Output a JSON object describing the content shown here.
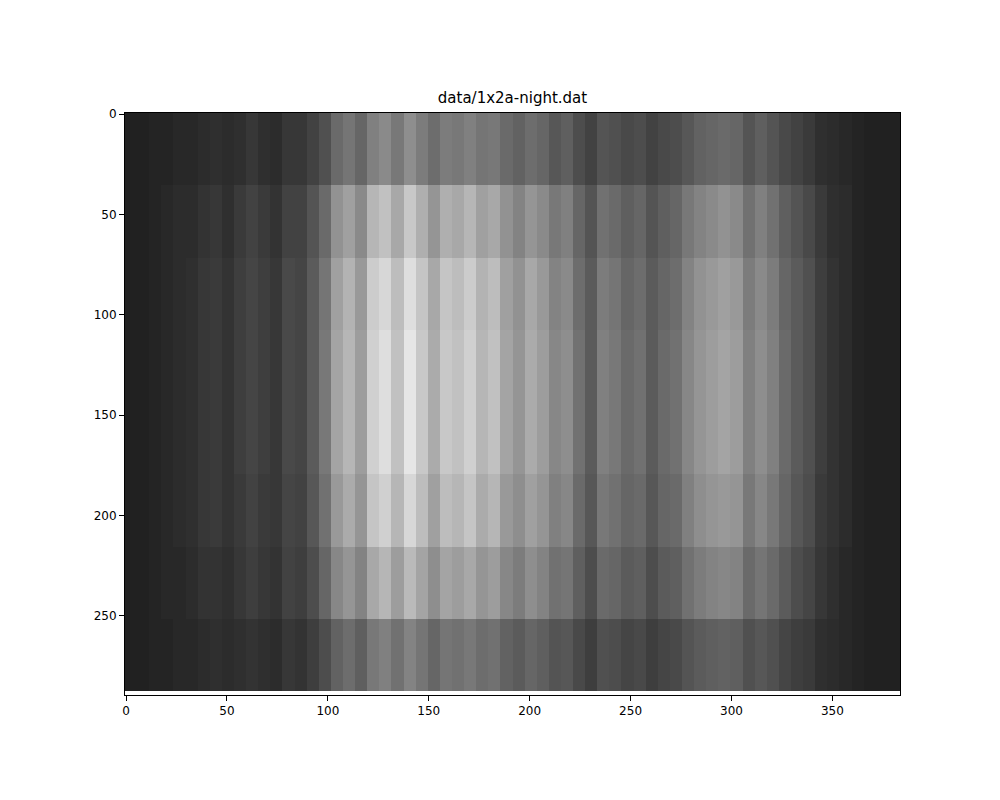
{
  "chart_data": {
    "type": "heatmap",
    "title": "data/1x2a-night.dat",
    "x": [
      2.5,
      8.5,
      14.5,
      20.5,
      26.5,
      32.5,
      38.5,
      44.5,
      50.5,
      56.5,
      62.5,
      68.5,
      74.5,
      80.5,
      86.5,
      92.5,
      98.5,
      104.5,
      110.5,
      116.5,
      122.5,
      128.5,
      134.5,
      140.5,
      146.5,
      152.5,
      158.5,
      164.5,
      170.5,
      176.5,
      182.5,
      188.5,
      194.5,
      200.5,
      206.5,
      212.5,
      218.5,
      224.5,
      230.5,
      236.5,
      242.5,
      248.5,
      254.5,
      260.5,
      266.5,
      272.5,
      278.5,
      284.5,
      290.5,
      296.5,
      302.5,
      308.5,
      314.5,
      320.5,
      326.5,
      332.5,
      338.5,
      344.5,
      350.5,
      356.5,
      362.5,
      368.5,
      374.5,
      380.5
    ],
    "y": [
      17.5,
      53.5,
      89.5,
      125.5,
      161.5,
      197.5,
      233.5,
      269.5
    ],
    "cells": [
      [
        14,
        14,
        15,
        15,
        16,
        16,
        17,
        18,
        17,
        18,
        20,
        18,
        17,
        20,
        20,
        23,
        27,
        34,
        37,
        33,
        40,
        43,
        38,
        44,
        39,
        35,
        39,
        38,
        40,
        37,
        38,
        34,
        32,
        35,
        33,
        29,
        31,
        26,
        23,
        28,
        27,
        25,
        26,
        23,
        25,
        26,
        29,
        32,
        33,
        34,
        33,
        28,
        31,
        28,
        25,
        23,
        21,
        18,
        17,
        16,
        15,
        14,
        14,
        14
      ],
      [
        14,
        14,
        15,
        16,
        17,
        17,
        19,
        20,
        18,
        21,
        23,
        21,
        19,
        23,
        23,
        28,
        34,
        45,
        49,
        43,
        55,
        58,
        51,
        60,
        53,
        46,
        53,
        51,
        55,
        49,
        51,
        45,
        41,
        46,
        43,
        38,
        40,
        33,
        28,
        36,
        34,
        31,
        33,
        28,
        31,
        33,
        38,
        41,
        43,
        45,
        43,
        36,
        40,
        36,
        31,
        28,
        25,
        21,
        18,
        17,
        15,
        14,
        14,
        14
      ],
      [
        14,
        14,
        15,
        16,
        17,
        18,
        20,
        21,
        19,
        22,
        24,
        22,
        20,
        25,
        24,
        30,
        37,
        49,
        54,
        47,
        61,
        64,
        57,
        66,
        59,
        51,
        59,
        57,
        61,
        54,
        57,
        49,
        45,
        51,
        47,
        41,
        43,
        35,
        30,
        39,
        37,
        33,
        35,
        30,
        33,
        35,
        41,
        45,
        47,
        49,
        47,
        39,
        43,
        39,
        33,
        30,
        27,
        22,
        19,
        17,
        15,
        14,
        14,
        14
      ],
      [
        14,
        14,
        15,
        16,
        17,
        18,
        20,
        21,
        19,
        22,
        24,
        22,
        20,
        25,
        24,
        30,
        38,
        50,
        55,
        48,
        62,
        66,
        58,
        68,
        60,
        52,
        60,
        58,
        62,
        55,
        58,
        50,
        46,
        52,
        48,
        42,
        44,
        36,
        30,
        40,
        38,
        34,
        36,
        30,
        34,
        36,
        42,
        46,
        48,
        50,
        48,
        40,
        44,
        40,
        34,
        30,
        27,
        22,
        19,
        17,
        15,
        14,
        14,
        14
      ],
      [
        14,
        14,
        15,
        16,
        17,
        18,
        20,
        21,
        19,
        22,
        24,
        22,
        20,
        25,
        24,
        30,
        38,
        50,
        55,
        48,
        62,
        66,
        58,
        68,
        60,
        52,
        60,
        58,
        62,
        55,
        58,
        50,
        46,
        52,
        48,
        42,
        44,
        36,
        30,
        40,
        38,
        34,
        36,
        30,
        34,
        36,
        42,
        46,
        48,
        50,
        48,
        40,
        44,
        40,
        34,
        30,
        27,
        22,
        19,
        17,
        15,
        14,
        14,
        14
      ],
      [
        14,
        14,
        15,
        16,
        17,
        18,
        20,
        21,
        19,
        21,
        23,
        21,
        20,
        24,
        23,
        29,
        36,
        47,
        52,
        46,
        59,
        62,
        55,
        64,
        57,
        49,
        57,
        55,
        59,
        52,
        55,
        47,
        44,
        49,
        46,
        40,
        42,
        34,
        29,
        38,
        36,
        33,
        34,
        29,
        33,
        34,
        40,
        44,
        46,
        47,
        46,
        38,
        42,
        38,
        33,
        29,
        26,
        21,
        19,
        17,
        15,
        14,
        14,
        14
      ],
      [
        14,
        14,
        15,
        16,
        16,
        17,
        19,
        19,
        18,
        20,
        22,
        20,
        19,
        23,
        22,
        26,
        33,
        42,
        46,
        41,
        51,
        55,
        48,
        56,
        50,
        44,
        50,
        48,
        51,
        46,
        48,
        42,
        39,
        44,
        41,
        36,
        37,
        31,
        26,
        34,
        33,
        30,
        31,
        26,
        30,
        31,
        36,
        39,
        41,
        42,
        41,
        34,
        37,
        34,
        30,
        26,
        24,
        20,
        18,
        16,
        15,
        14,
        14,
        14
      ],
      [
        14,
        14,
        15,
        15,
        16,
        16,
        17,
        18,
        17,
        18,
        19,
        18,
        17,
        20,
        19,
        22,
        26,
        32,
        35,
        31,
        38,
        40,
        36,
        41,
        37,
        33,
        37,
        36,
        38,
        35,
        36,
        32,
        30,
        33,
        31,
        28,
        29,
        25,
        22,
        27,
        26,
        24,
        25,
        22,
        24,
        25,
        28,
        30,
        31,
        32,
        31,
        27,
        29,
        27,
        24,
        22,
        21,
        18,
        17,
        16,
        15,
        14,
        14,
        14
      ]
    ],
    "zlim": [
      5,
      75
    ],
    "xlim": [
      -0.5,
      383.5
    ],
    "ylim": [
      289.5,
      -0.5
    ],
    "xticks": [
      0,
      50,
      100,
      150,
      200,
      250,
      300,
      350
    ],
    "yticks": [
      0,
      50,
      100,
      150,
      200,
      250
    ],
    "grid": false
  }
}
